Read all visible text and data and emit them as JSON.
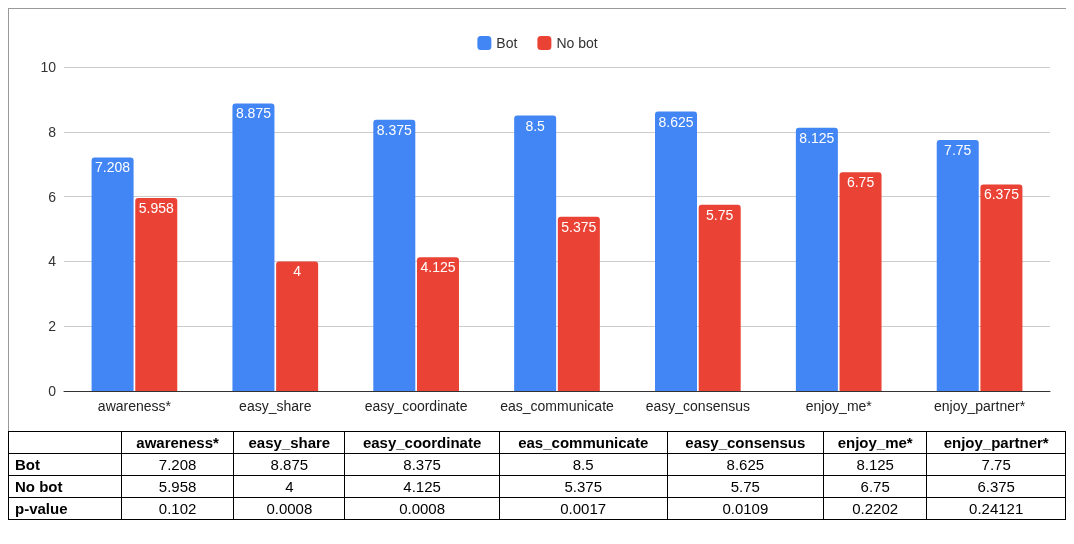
{
  "chart_data": {
    "type": "bar",
    "categories": [
      "awareness*",
      "easy_share",
      "easy_coordinate",
      "eas_communicate",
      "easy_consensus",
      "enjoy_me*",
      "enjoy_partner*"
    ],
    "series": [
      {
        "name": "Bot",
        "color": "#4285f4",
        "values": [
          7.208,
          8.875,
          8.375,
          8.5,
          8.625,
          8.125,
          7.75
        ],
        "value_labels": [
          "7.208",
          "8.875",
          "8.375",
          "8.5",
          "8.625",
          "8.125",
          "7.75"
        ]
      },
      {
        "name": "No bot",
        "color": "#ea4335",
        "values": [
          5.958,
          4,
          4.125,
          5.375,
          5.75,
          6.75,
          6.375
        ],
        "value_labels": [
          "5.958",
          "4",
          "4.125",
          "5.375",
          "5.75",
          "6.75",
          "6.375"
        ]
      }
    ],
    "ylim": [
      0,
      10
    ],
    "yticks": [
      0,
      2,
      4,
      6,
      8,
      10
    ],
    "grid": "y",
    "legend": "top",
    "annotations": [
      "7.208",
      "8.875",
      "8.375",
      "8.5",
      "8.625",
      "8.125",
      "7.75",
      "5.958",
      "4",
      "4.125",
      "5.375",
      "5.75",
      "6.75",
      "6.375",
      "p-value",
      "0.102",
      "0.0008",
      "0.0008",
      "0.0017",
      "0.0109",
      "0.2202",
      "0.24121"
    ]
  }
}
